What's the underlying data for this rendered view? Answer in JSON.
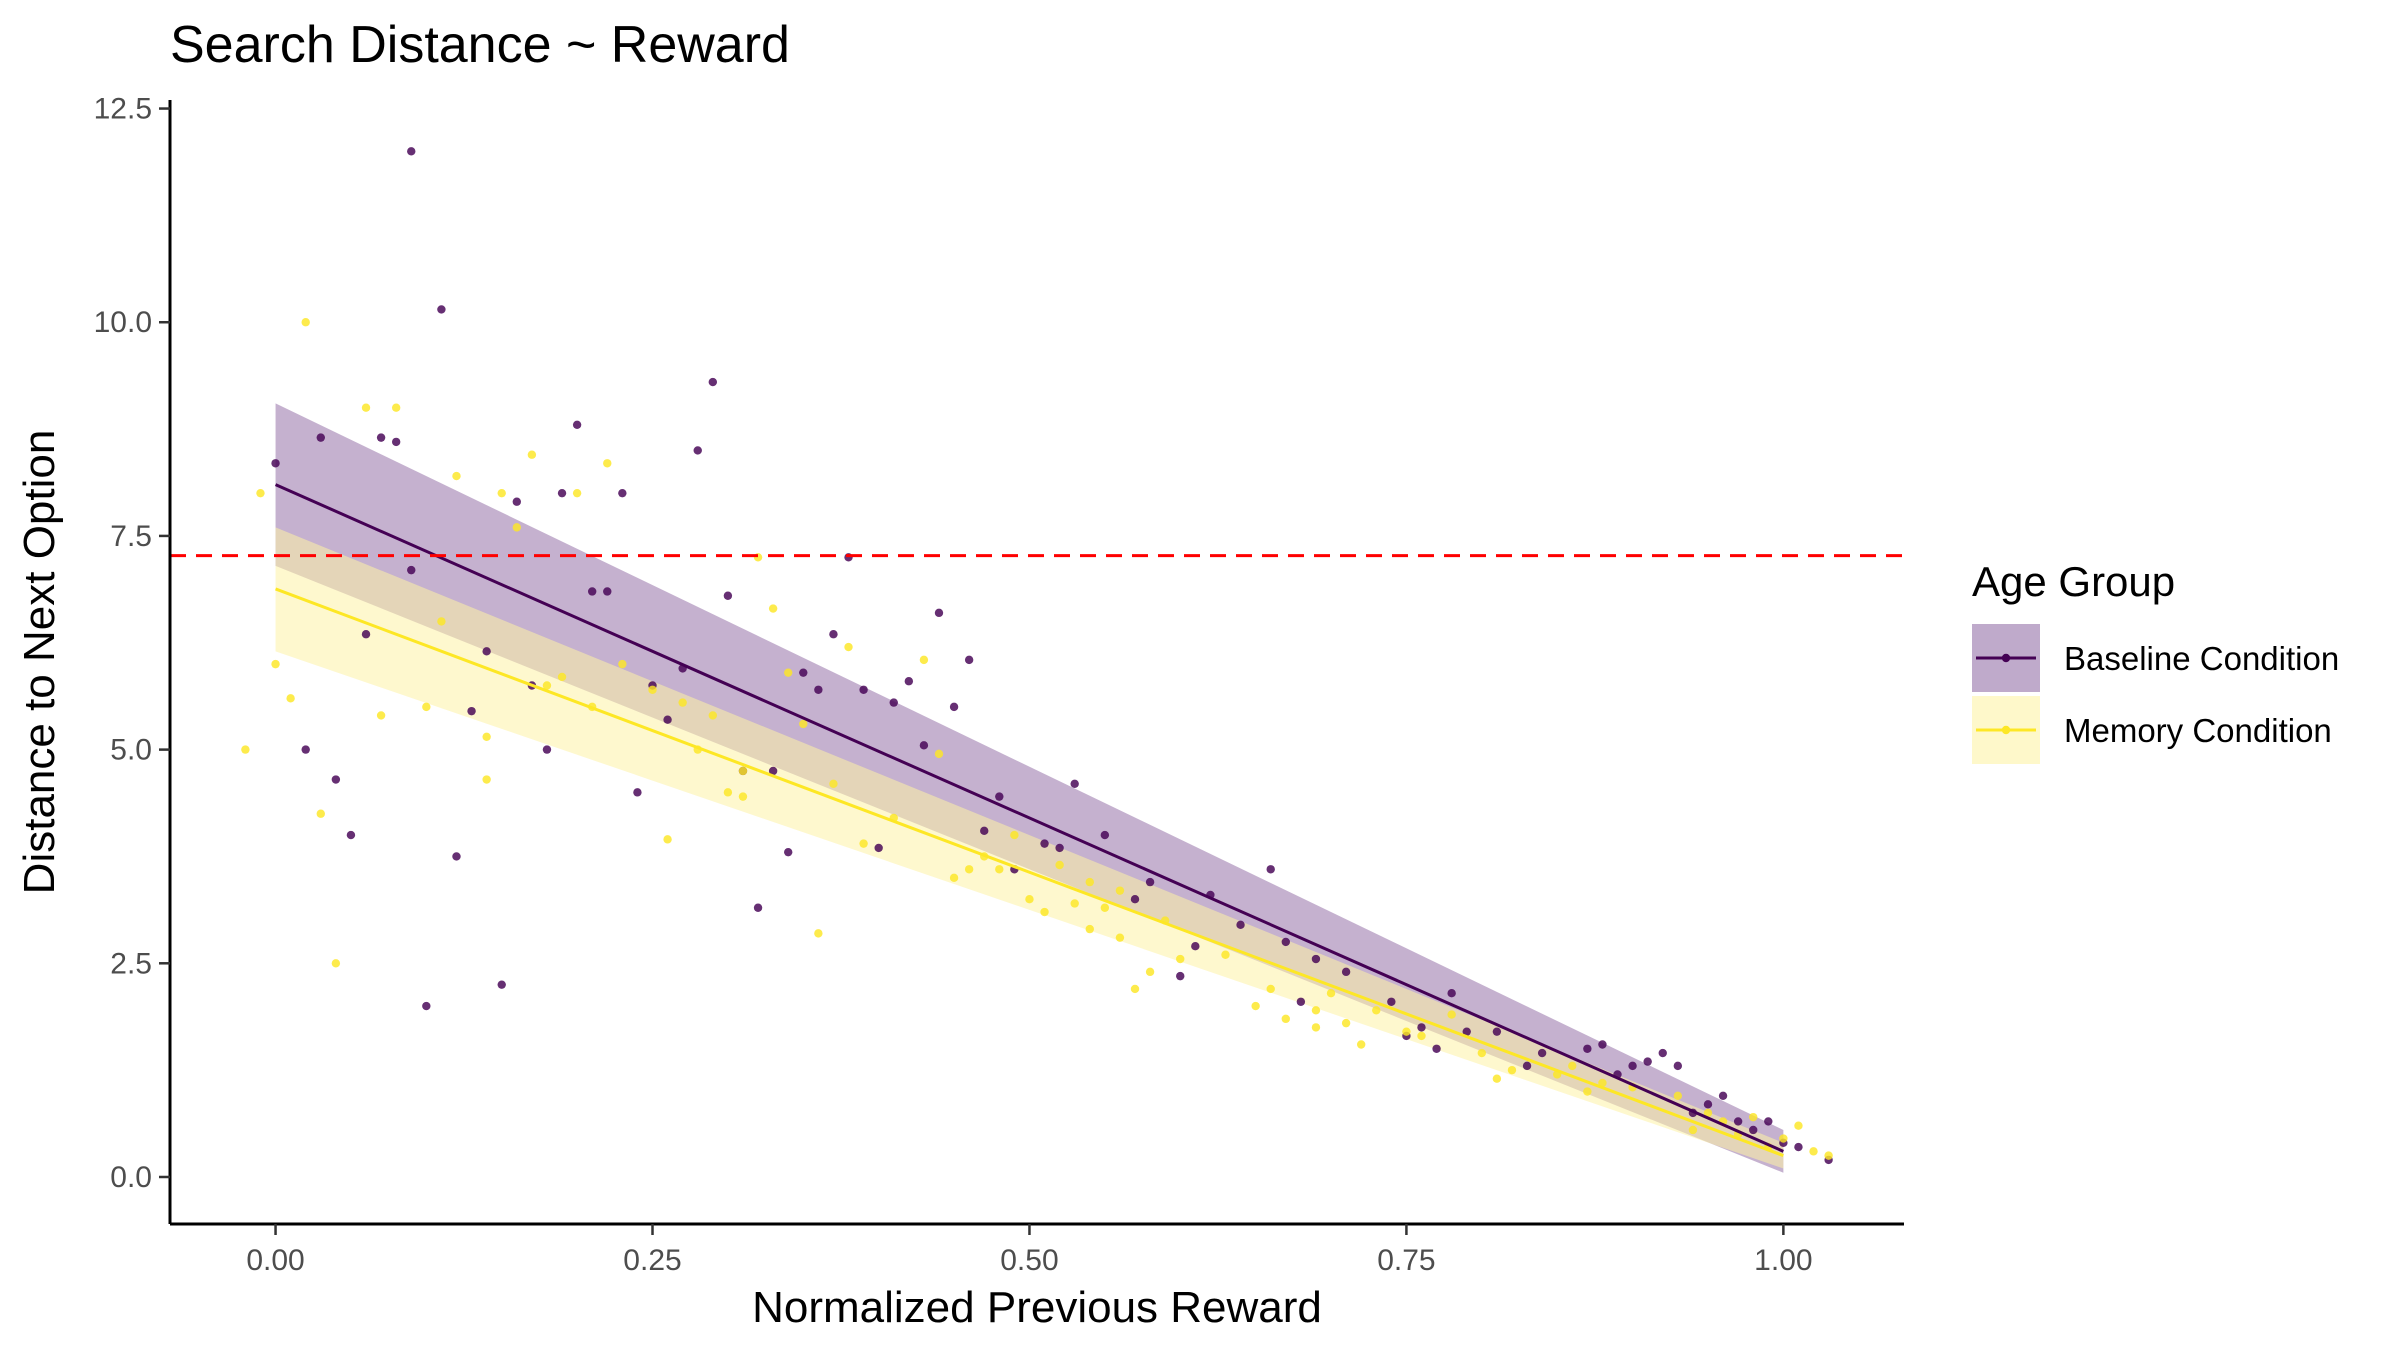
{
  "chart_data": {
    "type": "scatter",
    "title": "Search Distance ~ Reward",
    "xlabel": "Normalized Previous Reward",
    "ylabel": "Distance to Next Option",
    "xlim": [
      -0.07,
      1.08
    ],
    "ylim": [
      -0.55,
      12.6
    ],
    "x_ticks": [
      0.0,
      0.25,
      0.5,
      0.75,
      1.0
    ],
    "x_tick_labels": [
      "0.00",
      "0.25",
      "0.50",
      "0.75",
      "1.00"
    ],
    "y_ticks": [
      0.0,
      2.5,
      5.0,
      7.5,
      10.0,
      12.5
    ],
    "y_tick_labels": [
      "0.0",
      "2.5",
      "5.0",
      "7.5",
      "10.0",
      "12.5"
    ],
    "grid": false,
    "reference_line": {
      "y": 7.27,
      "color": "#ff0000",
      "style": "dashed"
    },
    "legend": {
      "title": "Age Group",
      "placement": "right"
    },
    "series": [
      {
        "name": "Baseline Condition",
        "color": "#440154",
        "band_color": "#8b64a0",
        "fit": {
          "x": [
            0.0,
            1.0
          ],
          "y": [
            8.1,
            0.3
          ],
          "lower": [
            7.15,
            0.05
          ],
          "upper": [
            9.05,
            0.55
          ]
        },
        "points": [
          [
            0.0,
            8.35
          ],
          [
            0.09,
            12.0
          ],
          [
            0.11,
            10.15
          ],
          [
            0.03,
            8.65
          ],
          [
            0.08,
            8.6
          ],
          [
            0.07,
            8.65
          ],
          [
            0.29,
            9.3
          ],
          [
            0.28,
            8.5
          ],
          [
            0.2,
            8.8
          ],
          [
            0.19,
            8.0
          ],
          [
            0.23,
            8.0
          ],
          [
            0.16,
            7.9
          ],
          [
            0.38,
            7.25
          ],
          [
            0.09,
            7.1
          ],
          [
            0.06,
            6.35
          ],
          [
            0.22,
            6.85
          ],
          [
            0.21,
            6.85
          ],
          [
            0.3,
            6.8
          ],
          [
            0.44,
            6.6
          ],
          [
            0.37,
            6.35
          ],
          [
            0.46,
            6.05
          ],
          [
            0.14,
            6.15
          ],
          [
            0.27,
            5.95
          ],
          [
            0.35,
            5.9
          ],
          [
            0.42,
            5.8
          ],
          [
            0.36,
            5.7
          ],
          [
            0.39,
            5.7
          ],
          [
            0.41,
            5.55
          ],
          [
            0.17,
            5.75
          ],
          [
            0.25,
            5.75
          ],
          [
            0.45,
            5.5
          ],
          [
            0.13,
            5.45
          ],
          [
            0.26,
            5.35
          ],
          [
            0.02,
            5.0
          ],
          [
            0.18,
            5.0
          ],
          [
            0.43,
            5.05
          ],
          [
            0.31,
            4.75
          ],
          [
            0.33,
            4.75
          ],
          [
            0.04,
            4.65
          ],
          [
            0.53,
            4.6
          ],
          [
            0.24,
            4.5
          ],
          [
            0.48,
            4.45
          ],
          [
            0.05,
            4.0
          ],
          [
            0.55,
            4.0
          ],
          [
            0.47,
            4.05
          ],
          [
            0.51,
            3.9
          ],
          [
            0.52,
            3.85
          ],
          [
            0.4,
            3.85
          ],
          [
            0.34,
            3.8
          ],
          [
            0.12,
            3.75
          ],
          [
            0.66,
            3.6
          ],
          [
            0.49,
            3.6
          ],
          [
            0.58,
            3.45
          ],
          [
            0.62,
            3.3
          ],
          [
            0.57,
            3.25
          ],
          [
            0.32,
            3.15
          ],
          [
            0.64,
            2.95
          ],
          [
            0.67,
            2.75
          ],
          [
            0.61,
            2.7
          ],
          [
            0.69,
            2.55
          ],
          [
            0.71,
            2.4
          ],
          [
            0.6,
            2.35
          ],
          [
            0.15,
            2.25
          ],
          [
            0.78,
            2.15
          ],
          [
            0.74,
            2.05
          ],
          [
            0.68,
            2.05
          ],
          [
            0.1,
            2.0
          ],
          [
            0.76,
            1.75
          ],
          [
            0.79,
            1.7
          ],
          [
            0.81,
            1.7
          ],
          [
            0.75,
            1.65
          ],
          [
            0.77,
            1.5
          ],
          [
            0.87,
            1.5
          ],
          [
            0.88,
            1.55
          ],
          [
            0.92,
            1.45
          ],
          [
            0.9,
            1.3
          ],
          [
            0.93,
            1.3
          ],
          [
            0.84,
            1.45
          ],
          [
            0.91,
            1.35
          ],
          [
            0.83,
            1.3
          ],
          [
            0.89,
            1.2
          ],
          [
            0.96,
            0.95
          ],
          [
            0.95,
            0.85
          ],
          [
            0.97,
            0.65
          ],
          [
            0.94,
            0.75
          ],
          [
            0.99,
            0.65
          ],
          [
            0.98,
            0.55
          ],
          [
            1.0,
            0.4
          ],
          [
            1.01,
            0.35
          ],
          [
            1.03,
            0.2
          ]
        ]
      },
      {
        "name": "Memory Condition",
        "color": "#fde725",
        "band_color": "#fef3a6",
        "fit": {
          "x": [
            0.0,
            1.0
          ],
          "y": [
            6.88,
            0.25
          ],
          "lower": [
            6.15,
            0.1
          ],
          "upper": [
            7.6,
            0.4
          ]
        },
        "points": [
          [
            0.02,
            10.0
          ],
          [
            0.06,
            9.0
          ],
          [
            0.08,
            9.0
          ],
          [
            0.17,
            8.45
          ],
          [
            0.22,
            8.35
          ],
          [
            0.12,
            8.2
          ],
          [
            -0.01,
            8.0
          ],
          [
            0.15,
            8.0
          ],
          [
            0.2,
            8.0
          ],
          [
            0.16,
            7.6
          ],
          [
            0.32,
            7.25
          ],
          [
            0.33,
            6.65
          ],
          [
            0.11,
            6.5
          ],
          [
            0.38,
            6.2
          ],
          [
            0.43,
            6.05
          ],
          [
            0.0,
            6.0
          ],
          [
            0.23,
            6.0
          ],
          [
            0.19,
            5.85
          ],
          [
            0.34,
            5.9
          ],
          [
            0.18,
            5.75
          ],
          [
            0.25,
            5.7
          ],
          [
            0.01,
            5.6
          ],
          [
            0.27,
            5.55
          ],
          [
            0.21,
            5.5
          ],
          [
            0.1,
            5.5
          ],
          [
            0.07,
            5.4
          ],
          [
            0.29,
            5.4
          ],
          [
            0.35,
            5.3
          ],
          [
            0.14,
            5.15
          ],
          [
            -0.02,
            5.0
          ],
          [
            0.28,
            5.0
          ],
          [
            0.44,
            4.95
          ],
          [
            0.31,
            4.75
          ],
          [
            0.14,
            4.65
          ],
          [
            0.37,
            4.6
          ],
          [
            0.3,
            4.5
          ],
          [
            0.31,
            4.45
          ],
          [
            0.03,
            4.25
          ],
          [
            0.41,
            4.2
          ],
          [
            0.49,
            4.0
          ],
          [
            0.26,
            3.95
          ],
          [
            0.39,
            3.9
          ],
          [
            0.47,
            3.75
          ],
          [
            0.46,
            3.6
          ],
          [
            0.48,
            3.6
          ],
          [
            0.45,
            3.5
          ],
          [
            0.52,
            3.65
          ],
          [
            0.54,
            3.45
          ],
          [
            0.56,
            3.35
          ],
          [
            0.5,
            3.25
          ],
          [
            0.53,
            3.2
          ],
          [
            0.55,
            3.15
          ],
          [
            0.51,
            3.1
          ],
          [
            0.59,
            3.0
          ],
          [
            0.54,
            2.9
          ],
          [
            0.36,
            2.85
          ],
          [
            0.56,
            2.8
          ],
          [
            0.63,
            2.6
          ],
          [
            0.6,
            2.55
          ],
          [
            0.04,
            2.5
          ],
          [
            0.58,
            2.4
          ],
          [
            0.57,
            2.2
          ],
          [
            0.66,
            2.2
          ],
          [
            0.7,
            2.15
          ],
          [
            0.65,
            2.0
          ],
          [
            0.69,
            1.95
          ],
          [
            0.73,
            1.95
          ],
          [
            0.67,
            1.85
          ],
          [
            0.71,
            1.8
          ],
          [
            0.69,
            1.75
          ],
          [
            0.75,
            1.7
          ],
          [
            0.76,
            1.65
          ],
          [
            0.72,
            1.55
          ],
          [
            0.78,
            1.9
          ],
          [
            0.8,
            1.45
          ],
          [
            0.82,
            1.25
          ],
          [
            0.81,
            1.15
          ],
          [
            0.86,
            1.3
          ],
          [
            0.85,
            1.2
          ],
          [
            0.88,
            1.1
          ],
          [
            0.87,
            1.0
          ],
          [
            0.9,
            1.05
          ],
          [
            0.93,
            0.95
          ],
          [
            0.95,
            0.75
          ],
          [
            0.96,
            0.65
          ],
          [
            0.98,
            0.7
          ],
          [
            0.94,
            0.55
          ],
          [
            0.97,
            0.5
          ],
          [
            1.01,
            0.6
          ],
          [
            1.0,
            0.45
          ],
          [
            1.02,
            0.3
          ],
          [
            1.03,
            0.25
          ],
          [
            0.99,
            0.35
          ]
        ]
      }
    ]
  }
}
